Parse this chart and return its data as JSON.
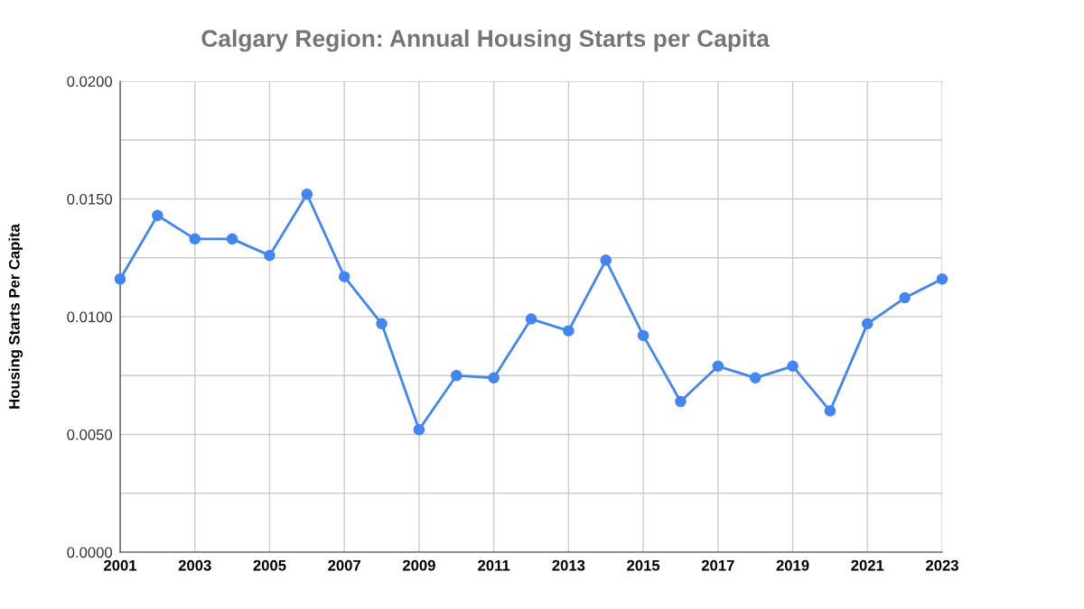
{
  "chart_data": {
    "type": "line",
    "title": "Calgary Region: Annual Housing Starts per Capita",
    "ylabel": "Housing Starts Per Capita",
    "x": [
      2001,
      2002,
      2003,
      2004,
      2005,
      2006,
      2007,
      2008,
      2009,
      2010,
      2011,
      2012,
      2013,
      2014,
      2015,
      2016,
      2017,
      2018,
      2019,
      2020,
      2021,
      2022,
      2023
    ],
    "series": [
      {
        "color": "#4285f4",
        "values": [
          0.0116,
          0.0143,
          0.0133,
          0.0133,
          0.0126,
          0.0152,
          0.0117,
          0.0097,
          0.0052,
          0.0075,
          0.0074,
          0.0099,
          0.0094,
          0.0124,
          0.0092,
          0.0064,
          0.0079,
          0.0074,
          0.0079,
          0.006,
          0.0097,
          0.0108,
          0.0116
        ]
      }
    ],
    "xlim": [
      2001,
      2023
    ],
    "xticks": [
      2001,
      2003,
      2005,
      2007,
      2009,
      2011,
      2013,
      2015,
      2017,
      2019,
      2021,
      2023
    ],
    "ylim": [
      0,
      0.02
    ],
    "yticks": [
      {
        "value": 0,
        "label": "0.0000"
      },
      {
        "value": 0.0025,
        "label": null
      },
      {
        "value": 0.005,
        "label": "0.0050"
      },
      {
        "value": 0.0075,
        "label": null
      },
      {
        "value": 0.01,
        "label": "0.0100"
      },
      {
        "value": 0.0125,
        "label": null
      },
      {
        "value": 0.015,
        "label": "0.0150"
      },
      {
        "value": 0.0175,
        "label": null
      },
      {
        "value": 0.02,
        "label": "0.0200"
      }
    ],
    "grid": true,
    "marker": "circle",
    "line_style": "solid",
    "legend": false
  }
}
